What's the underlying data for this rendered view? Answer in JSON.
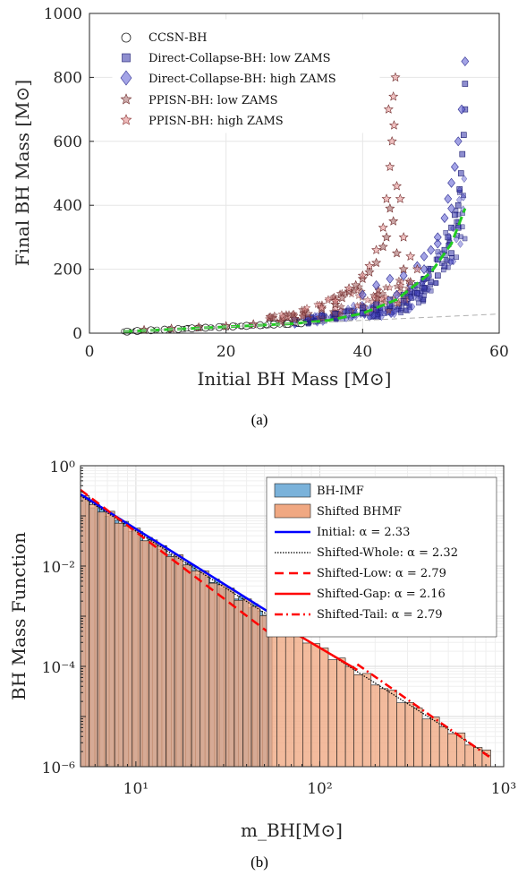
{
  "panels": [
    {
      "caption": "(a)",
      "chart_data": {
        "type": "scatter",
        "xlabel": "Initial BH Mass [M⊙]",
        "ylabel": "Final BH Mass [M⊙]",
        "xlim": [
          0,
          60
        ],
        "ylim": [
          0,
          1000
        ],
        "xticks": [
          "0",
          "20",
          "40",
          "60"
        ],
        "yticks": [
          "0",
          "200",
          "400",
          "600",
          "800",
          "1000"
        ],
        "grid": true,
        "legend_position": "top-left",
        "series": [
          {
            "name": "CCSN-BH",
            "marker": "circle",
            "color": "#ffffff",
            "points": [
              [
                5.5,
                5
              ],
              [
                7,
                7
              ],
              [
                9,
                9
              ],
              [
                11,
                11
              ],
              [
                13,
                13
              ],
              [
                15,
                15
              ],
              [
                17,
                17
              ],
              [
                19,
                19
              ],
              [
                21,
                21
              ],
              [
                23,
                23
              ],
              [
                25,
                25
              ],
              [
                27,
                27
              ],
              [
                29,
                29
              ],
              [
                31,
                31
              ]
            ]
          },
          {
            "name": "Direct-Collapse-BH: low ZAMS",
            "marker": "square",
            "color": "#3232a8",
            "points": [
              [
                30,
                40
              ],
              [
                32,
                45
              ],
              [
                34,
                55
              ],
              [
                36,
                60
              ],
              [
                38,
                70
              ],
              [
                40,
                80
              ],
              [
                42,
                90
              ],
              [
                44,
                105
              ],
              [
                46,
                120
              ],
              [
                47,
                130
              ],
              [
                48,
                150
              ],
              [
                49,
                170
              ],
              [
                50,
                200
              ],
              [
                51,
                230
              ],
              [
                52,
                260
              ],
              [
                52.5,
                300
              ],
              [
                53,
                330
              ],
              [
                53.5,
                370
              ],
              [
                54,
                400
              ],
              [
                54.2,
                450
              ],
              [
                54.4,
                500
              ],
              [
                54.6,
                560
              ],
              [
                54.8,
                620
              ],
              [
                55,
                700
              ],
              [
                55,
                780
              ],
              [
                54,
                330
              ],
              [
                53,
                250
              ],
              [
                52,
                210
              ],
              [
                51,
                180
              ],
              [
                50,
                160
              ],
              [
                49,
                140
              ],
              [
                48,
                125
              ],
              [
                46,
                100
              ],
              [
                44,
                85
              ],
              [
                42,
                72
              ],
              [
                40,
                62
              ]
            ]
          },
          {
            "name": "Direct-Collapse-BH: high ZAMS",
            "marker": "diamond",
            "color": "#5a5ad2",
            "points": [
              [
                40,
                120
              ],
              [
                42,
                150
              ],
              [
                44,
                170
              ],
              [
                46,
                180
              ],
              [
                48,
                210
              ],
              [
                49,
                240
              ],
              [
                50,
                260
              ],
              [
                51,
                300
              ],
              [
                52,
                360
              ],
              [
                52.5,
                420
              ],
              [
                53,
                470
              ],
              [
                53.5,
                520
              ],
              [
                54,
                600
              ],
              [
                54.5,
                700
              ],
              [
                55,
                850
              ],
              [
                53,
                390
              ],
              [
                51,
                280
              ],
              [
                49,
                200
              ],
              [
                47,
                150
              ],
              [
                45,
                120
              ]
            ]
          },
          {
            "name": "PPISN-BH: low ZAMS",
            "marker": "star",
            "color": "#a86a6a",
            "points": [
              [
                8,
                10
              ],
              [
                12,
                14
              ],
              [
                16,
                18
              ],
              [
                20,
                22
              ],
              [
                24,
                28
              ],
              [
                28,
                36
              ],
              [
                30,
                45
              ],
              [
                32,
                60
              ],
              [
                34,
                75
              ],
              [
                36,
                90
              ],
              [
                37,
                110
              ],
              [
                38,
                130
              ],
              [
                39,
                150
              ],
              [
                40,
                170
              ],
              [
                41,
                190
              ],
              [
                42,
                220
              ],
              [
                43,
                270
              ],
              [
                43.5,
                300
              ],
              [
                44,
                390
              ],
              [
                44.5,
                350
              ],
              [
                45,
                250
              ],
              [
                46,
                200
              ],
              [
                47,
                160
              ]
            ]
          },
          {
            "name": "PPISN-BH: high ZAMS",
            "marker": "star",
            "color": "#e89a9a",
            "points": [
              [
                34,
                80
              ],
              [
                36,
                100
              ],
              [
                38,
                140
              ],
              [
                40,
                180
              ],
              [
                41,
                210
              ],
              [
                42,
                260
              ],
              [
                43,
                330
              ],
              [
                43.5,
                420
              ],
              [
                44,
                520
              ],
              [
                44.3,
                600
              ],
              [
                44.6,
                650
              ],
              [
                43.8,
                700
              ],
              [
                44.5,
                740
              ],
              [
                44.8,
                800
              ],
              [
                45,
                460
              ],
              [
                45.5,
                420
              ],
              [
                46,
                300
              ],
              [
                47,
                240
              ],
              [
                48,
                200
              ]
            ]
          }
        ],
        "fit_lines": [
          {
            "color": "#22cc22",
            "style": "dashed",
            "points": [
              [
                5,
                5
              ],
              [
                20,
                20
              ],
              [
                30,
                30
              ],
              [
                35,
                40
              ],
              [
                40,
                62
              ],
              [
                45,
                105
              ],
              [
                50,
                190
              ],
              [
                53,
                280
              ],
              [
                55,
                390
              ]
            ]
          },
          {
            "color": "#b0b0b0",
            "style": "dashed",
            "points": [
              [
                5,
                5
              ],
              [
                60,
                60
              ]
            ]
          }
        ]
      }
    },
    {
      "caption": "(b)",
      "chart_data": {
        "type": "bar",
        "xlabel": "m_BH[M⊙]",
        "ylabel": "BH Mass Function",
        "xscale": "log",
        "yscale": "log",
        "xlim": [
          5,
          1000
        ],
        "ylim": [
          1e-06,
          1
        ],
        "xticks": [
          "10¹",
          "10²",
          "10³"
        ],
        "yticks": [
          "10⁻⁶",
          "10⁻⁴",
          "10⁻²",
          "10⁰"
        ],
        "grid": true,
        "legend_position": "top-right",
        "histograms": [
          {
            "name": "BH-IMF",
            "color": "#7ab2da",
            "range": [
              5,
              55
            ],
            "bins": 40,
            "alpha": 2.33,
            "norm": 0.25
          },
          {
            "name": "Shifted BHMF",
            "color": "#f0a882",
            "range": [
              5,
              850
            ],
            "bins": 48,
            "alpha": 2.32,
            "norm": 0.25
          }
        ],
        "series": [
          {
            "name": "Initial: α = 2.33",
            "color": "#0000ff",
            "style": "solid",
            "x": [
              5,
              55
            ],
            "y": [
              0.27,
              0.0011
            ]
          },
          {
            "name": "Shifted-Whole: α = 2.32",
            "color": "#000000",
            "style": "dotted",
            "x": [
              5,
              850
            ],
            "y": [
              0.25,
              1.6e-06
            ]
          },
          {
            "name": "Shifted-Low: α = 2.79",
            "color": "#ff0000",
            "style": "dashed",
            "x": [
              5,
              55
            ],
            "y": [
              0.33,
              0.00042
            ]
          },
          {
            "name": "Shifted-Gap: α = 2.16",
            "color": "#ff0000",
            "style": "solid",
            "x": [
              55,
              160
            ],
            "y": [
              0.00085,
              8.5e-05
            ]
          },
          {
            "name": "Shifted-Tail: α = 2.79",
            "color": "#ff0000",
            "style": "dashdot",
            "x": [
              160,
              850
            ],
            "y": [
              0.00011,
              1.5e-06
            ]
          }
        ]
      }
    }
  ]
}
